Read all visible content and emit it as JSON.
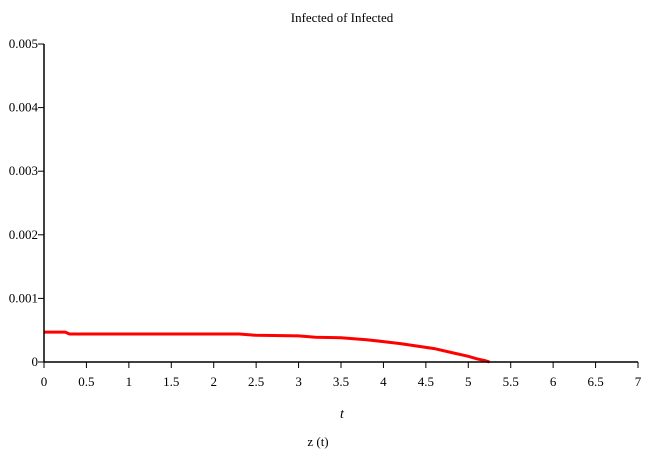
{
  "chart_data": {
    "type": "line",
    "title": "Infected of Infected",
    "xlabel": "t",
    "ylabel": "",
    "xlim": [
      0,
      7
    ],
    "ylim": [
      0,
      0.005
    ],
    "xticks": [
      0,
      0.5,
      1,
      1.5,
      2,
      2.5,
      3,
      3.5,
      4,
      4.5,
      5,
      5.5,
      6,
      6.5,
      7
    ],
    "xtick_labels": [
      "0",
      "0.5",
      "1",
      "1.5",
      "2",
      "2.5",
      "3",
      "3.5",
      "4",
      "4.5",
      "5",
      "5.5",
      "6",
      "6.5",
      "7"
    ],
    "yticks": [
      0,
      0.001,
      0.002,
      0.003,
      0.004,
      0.005
    ],
    "ytick_labels": [
      "0",
      "0.001",
      "0.002",
      "0.003",
      "0.004",
      "0.005"
    ],
    "grid": false,
    "legend_position": "bottom",
    "series": [
      {
        "name": "z (t)",
        "color": "#ff0000",
        "x": [
          0,
          0.25,
          0.3,
          0.5,
          1,
          1.5,
          2,
          2.3,
          2.5,
          3,
          3.2,
          3.5,
          3.8,
          4.0,
          4.2,
          4.4,
          4.6,
          4.8,
          5.0,
          5.1,
          5.2,
          5.25
        ],
        "y": [
          0.00047,
          0.00047,
          0.00044,
          0.00044,
          0.00044,
          0.00044,
          0.00044,
          0.00044,
          0.00042,
          0.00041,
          0.00039,
          0.00038,
          0.00035,
          0.00032,
          0.00029,
          0.00025,
          0.00021,
          0.00015,
          9e-05,
          5e-05,
          2e-05,
          0.0
        ]
      }
    ]
  }
}
